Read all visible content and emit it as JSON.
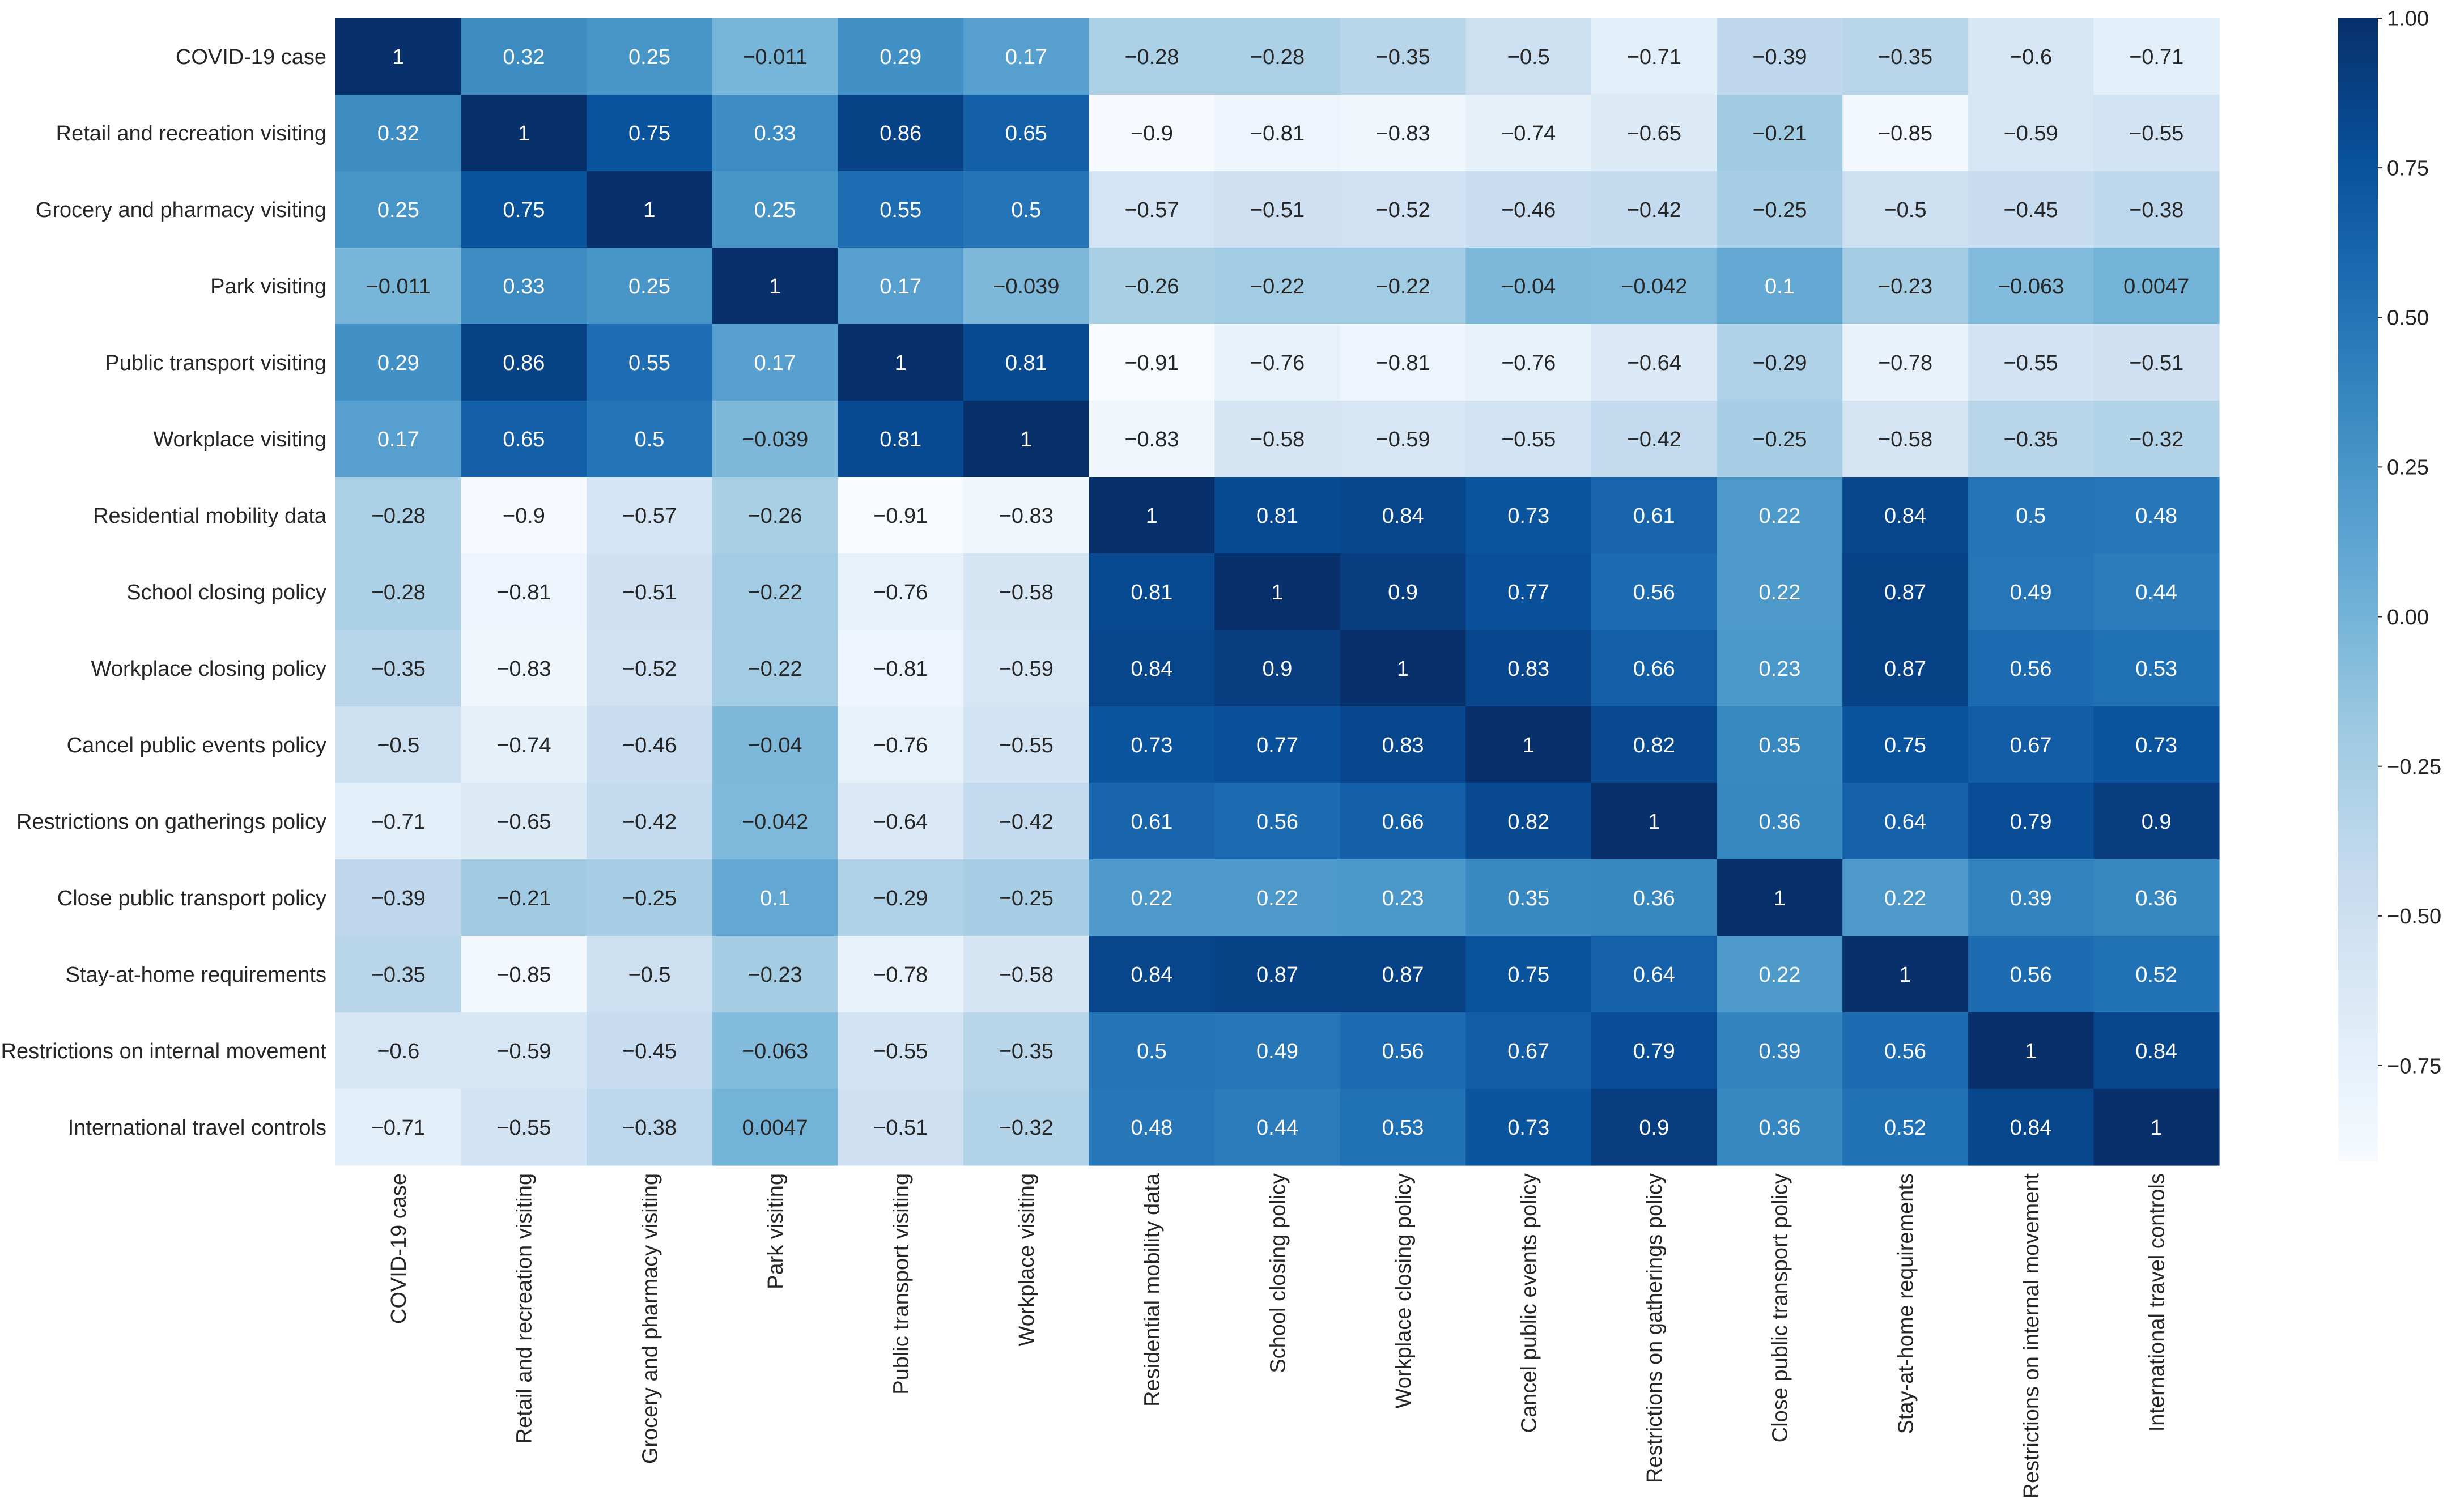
{
  "chart_data": {
    "type": "heatmap",
    "title": "",
    "xlabel": "",
    "ylabel": "",
    "labels": [
      "COVID-19 case",
      "Retail and recreation visiting",
      "Grocery and pharmacy visiting",
      "Park visiting",
      "Public transport visiting",
      "Workplace visiting",
      "Residential mobility data",
      "School closing policy",
      "Workplace closing policy",
      "Cancel public events policy",
      "Restrictions on gatherings policy",
      "Close public transport policy",
      "Stay-at-home requirements",
      "Restrictions on internal movement",
      "International travel controls"
    ],
    "matrix": [
      [
        1,
        0.32,
        0.25,
        -0.011,
        0.29,
        0.17,
        -0.28,
        -0.28,
        -0.35,
        -0.5,
        -0.71,
        -0.39,
        -0.35,
        -0.6,
        -0.71
      ],
      [
        0.32,
        1,
        0.75,
        0.33,
        0.86,
        0.65,
        -0.9,
        -0.81,
        -0.83,
        -0.74,
        -0.65,
        -0.21,
        -0.85,
        -0.59,
        -0.55
      ],
      [
        0.25,
        0.75,
        1,
        0.25,
        0.55,
        0.5,
        -0.57,
        -0.51,
        -0.52,
        -0.46,
        -0.42,
        -0.25,
        -0.5,
        -0.45,
        -0.38
      ],
      [
        -0.011,
        0.33,
        0.25,
        1,
        0.17,
        -0.039,
        -0.26,
        -0.22,
        -0.22,
        -0.04,
        -0.042,
        0.1,
        -0.23,
        -0.063,
        0.0047
      ],
      [
        0.29,
        0.86,
        0.55,
        0.17,
        1,
        0.81,
        -0.91,
        -0.76,
        -0.81,
        -0.76,
        -0.64,
        -0.29,
        -0.78,
        -0.55,
        -0.51
      ],
      [
        0.17,
        0.65,
        0.5,
        -0.039,
        0.81,
        1,
        -0.83,
        -0.58,
        -0.59,
        -0.55,
        -0.42,
        -0.25,
        -0.58,
        -0.35,
        -0.32
      ],
      [
        -0.28,
        -0.9,
        -0.57,
        -0.26,
        -0.91,
        -0.83,
        1,
        0.81,
        0.84,
        0.73,
        0.61,
        0.22,
        0.84,
        0.5,
        0.48
      ],
      [
        -0.28,
        -0.81,
        -0.51,
        -0.22,
        -0.76,
        -0.58,
        0.81,
        1,
        0.9,
        0.77,
        0.56,
        0.22,
        0.87,
        0.49,
        0.44
      ],
      [
        -0.35,
        -0.83,
        -0.52,
        -0.22,
        -0.81,
        -0.59,
        0.84,
        0.9,
        1,
        0.83,
        0.66,
        0.23,
        0.87,
        0.56,
        0.53
      ],
      [
        -0.5,
        -0.74,
        -0.46,
        -0.04,
        -0.76,
        -0.55,
        0.73,
        0.77,
        0.83,
        1,
        0.82,
        0.35,
        0.75,
        0.67,
        0.73
      ],
      [
        -0.71,
        -0.65,
        -0.42,
        -0.042,
        -0.64,
        -0.42,
        0.61,
        0.56,
        0.66,
        0.82,
        1,
        0.36,
        0.64,
        0.79,
        0.9
      ],
      [
        -0.39,
        -0.21,
        -0.25,
        0.1,
        -0.29,
        -0.25,
        0.22,
        0.22,
        0.23,
        0.35,
        0.36,
        1,
        0.22,
        0.39,
        0.36
      ],
      [
        -0.35,
        -0.85,
        -0.5,
        -0.23,
        -0.78,
        -0.58,
        0.84,
        0.87,
        0.87,
        0.75,
        0.64,
        0.22,
        1,
        0.56,
        0.52
      ],
      [
        -0.6,
        -0.59,
        -0.45,
        -0.063,
        -0.55,
        -0.35,
        0.5,
        0.49,
        0.56,
        0.67,
        0.79,
        0.39,
        0.56,
        1,
        0.84
      ],
      [
        -0.71,
        -0.55,
        -0.38,
        0.0047,
        -0.51,
        -0.32,
        0.48,
        0.44,
        0.53,
        0.73,
        0.9,
        0.36,
        0.52,
        0.84,
        1
      ]
    ],
    "value_range": [
      -0.91,
      1
    ],
    "colorbar": {
      "ticks": [
        1.0,
        0.75,
        0.5,
        0.25,
        0.0,
        -0.25,
        -0.5,
        -0.75
      ],
      "tick_labels": [
        "1.00",
        "0.75",
        "0.50",
        "0.25",
        "0.00",
        "−0.25",
        "−0.50",
        "−0.75"
      ]
    },
    "colormap": "Blues",
    "colormap_stops": [
      "#f7fbff",
      "#deebf7",
      "#c6dbef",
      "#9ecae1",
      "#6baed6",
      "#4292c6",
      "#2171b5",
      "#08519c",
      "#08306b"
    ],
    "text_colors": {
      "dark": "#262626",
      "light": "#ffffff"
    },
    "legend_position": "right"
  }
}
